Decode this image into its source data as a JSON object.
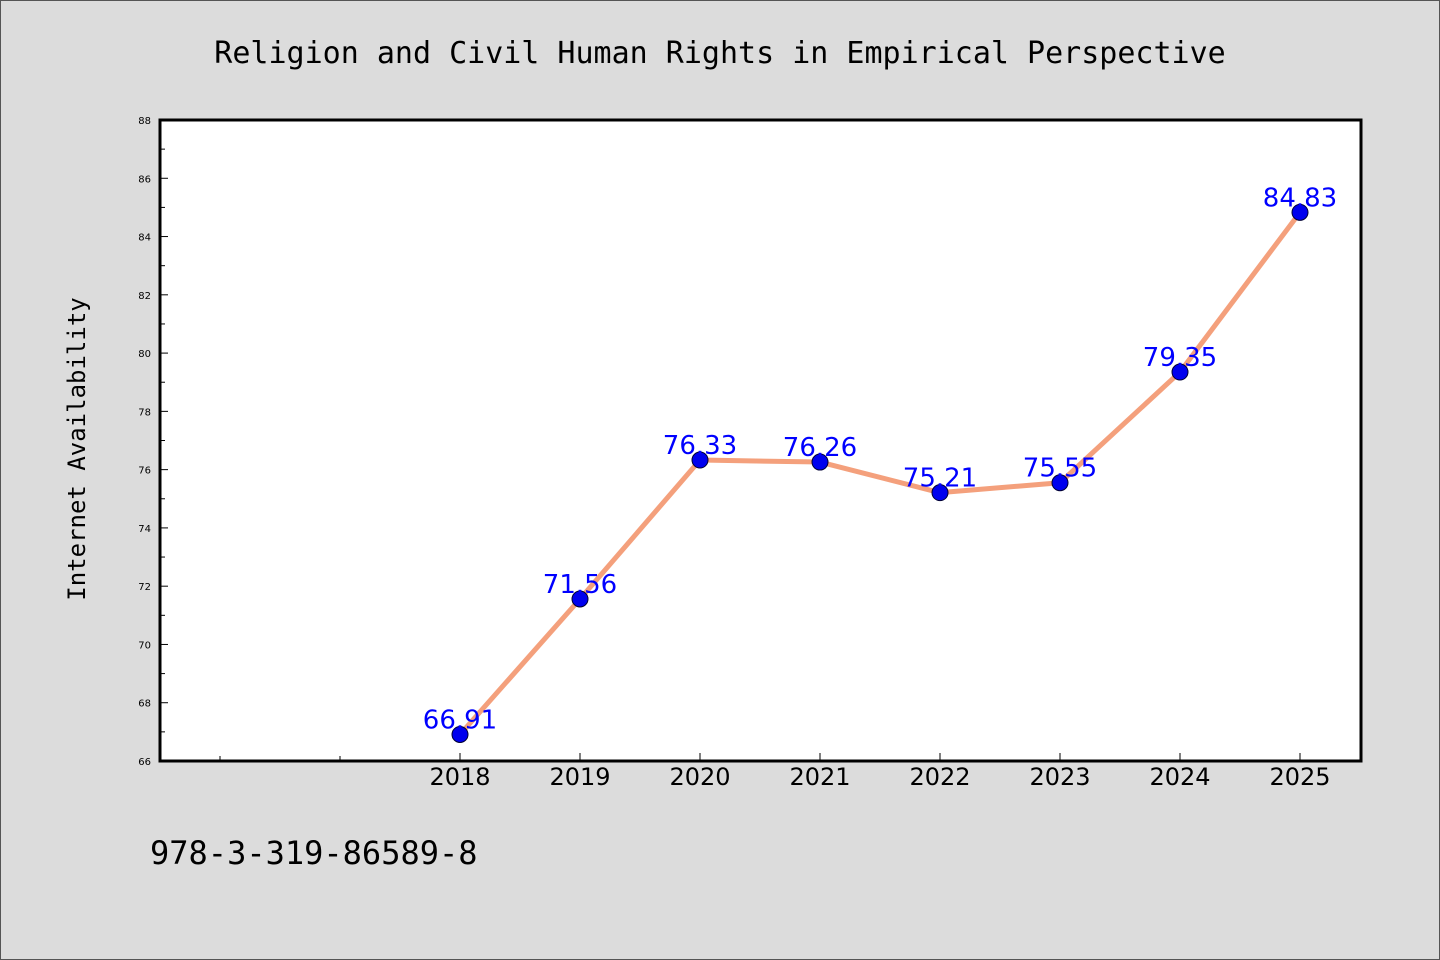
{
  "chart_data": {
    "type": "line",
    "title": "Religion and Civil Human Rights in Empirical Perspective",
    "xlabel": "",
    "ylabel": "Internet Availability",
    "categories": [
      "2018",
      "2019",
      "2020",
      "2021",
      "2022",
      "2023",
      "2024",
      "2025"
    ],
    "series": [
      {
        "values": [
          66.91,
          71.56,
          76.33,
          76.26,
          75.21,
          75.55,
          79.35,
          84.83
        ],
        "labels": [
          "66.91",
          "71.56",
          "76.33",
          "76.26",
          "75.21",
          "75.55",
          "79.35",
          "84.83"
        ]
      }
    ],
    "ylim": [
      66,
      88
    ],
    "yticks": [
      "66",
      "68",
      "70",
      "72",
      "74",
      "76",
      "78",
      "80",
      "82",
      "84",
      "86",
      "88"
    ],
    "grid": false,
    "legend": "none",
    "colors": {
      "line": "#f4a07c",
      "marker": "#0000ee",
      "data_label": "#0000ff",
      "background": "#dcdcdc",
      "plot_area": "#ffffff"
    }
  },
  "footer": {
    "isbn": "978-3-319-86589-8"
  }
}
